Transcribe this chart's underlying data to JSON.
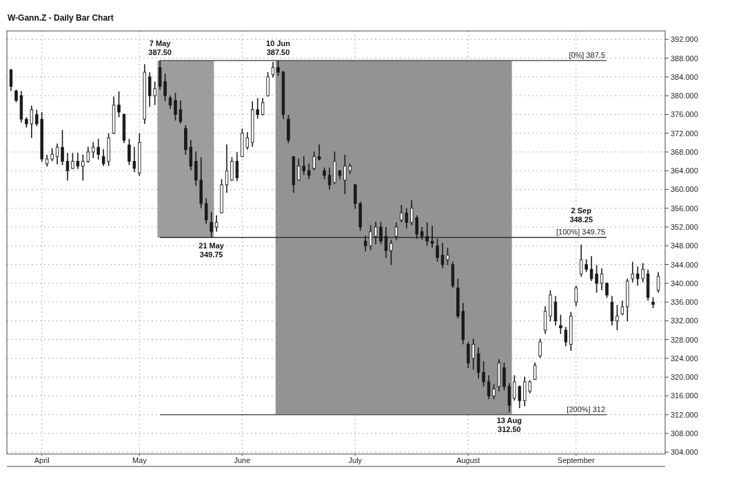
{
  "chart_data": {
    "type": "candlestick",
    "title": "W-Gann.Z - Daily Bar Chart",
    "color": "#1a1a1a",
    "categories": [
      null,
      null,
      null,
      null,
      null,
      null,
      "April",
      null,
      null,
      null,
      null,
      null,
      null,
      null,
      null,
      null,
      null,
      null,
      null,
      null,
      null,
      null,
      null,
      null,
      null,
      "May",
      null,
      null,
      null,
      null,
      null,
      null,
      null,
      null,
      null,
      null,
      null,
      null,
      null,
      null,
      null,
      null,
      null,
      null,
      null,
      "June",
      null,
      null,
      null,
      null,
      null,
      null,
      null,
      null,
      null,
      null,
      null,
      null,
      null,
      null,
      null,
      null,
      null,
      null,
      null,
      null,
      null,
      "July",
      null,
      null,
      null,
      null,
      null,
      null,
      null,
      null,
      null,
      null,
      null,
      null,
      null,
      null,
      null,
      null,
      null,
      null,
      null,
      null,
      null,
      "August",
      null,
      null,
      null,
      null,
      null,
      null,
      null,
      null,
      null,
      null,
      null,
      null,
      null,
      null,
      null,
      null,
      null,
      null,
      null,
      null,
      "September",
      null,
      null,
      null,
      null,
      null,
      null,
      null,
      null,
      null,
      null,
      null,
      null,
      null,
      null,
      null,
      null
    ],
    "ohlc": [
      [
        385.5,
        385.7,
        381,
        382
      ],
      [
        381,
        381.3,
        378.6,
        379
      ],
      [
        380,
        381,
        374.3,
        375
      ],
      [
        375,
        375.4,
        373.2,
        374
      ],
      [
        374,
        377.9,
        371,
        377
      ],
      [
        376,
        377,
        373.5,
        374
      ],
      [
        375,
        376.5,
        365.9,
        366.5
      ],
      [
        365.5,
        367.4,
        364.9,
        366.5
      ],
      [
        366.5,
        368.8,
        366,
        367.5
      ],
      [
        367,
        369.8,
        365.4,
        369
      ],
      [
        369,
        372.7,
        365.2,
        366
      ],
      [
        366,
        367.8,
        361.9,
        364
      ],
      [
        364.5,
        367.8,
        364.4,
        366
      ],
      [
        366,
        367.8,
        364.4,
        365
      ],
      [
        365,
        367.4,
        361.9,
        366
      ],
      [
        366,
        369.1,
        365.7,
        368
      ],
      [
        368,
        370.1,
        366.7,
        369
      ],
      [
        369,
        370.8,
        366.4,
        367.5
      ],
      [
        367,
        368.6,
        365,
        365.5
      ],
      [
        366,
        372,
        365,
        371
      ],
      [
        372,
        379.8,
        371.8,
        378
      ],
      [
        378,
        380.9,
        375.4,
        376.5
      ],
      [
        376,
        376.2,
        369.9,
        370.5
      ],
      [
        369.5,
        370.8,
        365.2,
        366
      ],
      [
        366,
        369.1,
        363.7,
        364.5
      ],
      [
        363.5,
        372,
        362.9,
        370
      ],
      [
        375,
        386.7,
        374,
        385
      ],
      [
        384,
        385,
        377.6,
        380
      ],
      [
        380,
        383,
        378,
        381.5
      ],
      [
        386,
        387.5,
        381.3,
        382
      ],
      [
        383,
        384.7,
        378.8,
        380
      ],
      [
        379.5,
        380.1,
        377.2,
        378
      ],
      [
        379,
        380.6,
        374.7,
        376
      ],
      [
        377,
        379,
        374,
        374.5
      ],
      [
        373,
        373.7,
        367.4,
        368.5
      ],
      [
        369,
        370.6,
        364.1,
        365
      ],
      [
        366,
        368.1,
        360.8,
        362
      ],
      [
        362,
        366.9,
        356,
        357
      ],
      [
        357,
        358.1,
        352.7,
        353.5
      ],
      [
        353,
        355.2,
        349.75,
        351
      ],
      [
        352,
        354.5,
        351,
        353
      ],
      [
        355,
        362.2,
        354.9,
        361
      ],
      [
        361,
        369.6,
        359.3,
        364
      ],
      [
        362,
        366.9,
        361.8,
        366
      ],
      [
        366,
        368,
        361.8,
        362.5
      ],
      [
        367,
        373,
        366.9,
        372
      ],
      [
        369,
        372.2,
        368.5,
        371
      ],
      [
        370,
        378.8,
        369.1,
        377
      ],
      [
        377,
        379.5,
        375.1,
        376
      ],
      [
        376,
        379.5,
        375.8,
        378.5
      ],
      [
        380,
        385,
        379.8,
        384
      ],
      [
        384.5,
        387.2,
        383.9,
        386
      ],
      [
        386,
        387.5,
        384.2,
        385
      ],
      [
        385,
        385.3,
        375,
        376
      ],
      [
        375,
        375.9,
        369.9,
        370.5
      ],
      [
        367,
        367.1,
        359.3,
        361
      ],
      [
        362,
        366.6,
        361.9,
        365
      ],
      [
        365,
        367.1,
        363.1,
        364
      ],
      [
        364,
        365.5,
        362.2,
        363
      ],
      [
        364.5,
        368.1,
        364.1,
        367
      ],
      [
        367,
        369.6,
        366.2,
        366.5
      ],
      [
        364,
        364.7,
        362.2,
        363
      ],
      [
        363,
        364.7,
        360,
        361
      ],
      [
        361.5,
        368.1,
        361.2,
        366
      ],
      [
        364,
        364.1,
        362.2,
        363
      ],
      [
        362,
        367.4,
        359,
        365
      ],
      [
        364,
        365.5,
        363.3,
        365
      ],
      [
        361,
        361.2,
        355.9,
        357
      ],
      [
        357,
        357.4,
        351.2,
        352
      ],
      [
        349,
        350.2,
        346.8,
        348
      ],
      [
        348,
        352.4,
        347.1,
        351
      ],
      [
        350,
        353.1,
        348.3,
        352
      ],
      [
        352,
        353.1,
        348.3,
        349
      ],
      [
        350,
        352,
        345.4,
        347
      ],
      [
        347,
        349.3,
        343.9,
        348.5
      ],
      [
        350,
        353,
        349.3,
        352
      ],
      [
        353.5,
        356.7,
        353,
        355
      ],
      [
        355,
        356,
        351.7,
        353
      ],
      [
        353,
        357.8,
        352.4,
        356
      ],
      [
        354,
        354.5,
        349.5,
        350.5
      ],
      [
        351,
        352,
        349.3,
        350
      ],
      [
        350,
        353,
        348,
        349
      ],
      [
        349,
        352.3,
        347.6,
        348.5
      ],
      [
        348,
        349.5,
        344.6,
        345.5
      ],
      [
        346,
        348.6,
        343.2,
        344
      ],
      [
        345,
        347.6,
        343.9,
        346
      ],
      [
        344,
        344.6,
        339,
        339.5
      ],
      [
        339,
        341,
        332.5,
        333
      ],
      [
        334,
        335.8,
        327,
        328
      ],
      [
        327,
        327.5,
        321.9,
        323
      ],
      [
        324,
        328.2,
        321.6,
        327
      ],
      [
        325,
        326.3,
        319.7,
        321
      ],
      [
        321,
        323.4,
        318,
        319
      ],
      [
        319,
        320.4,
        315.3,
        316
      ],
      [
        316,
        318.5,
        315.3,
        317.5
      ],
      [
        318,
        323.8,
        317,
        323
      ],
      [
        322,
        323.1,
        317.2,
        318
      ],
      [
        318,
        318.7,
        312.5,
        314
      ],
      [
        315.5,
        320.4,
        315,
        319
      ],
      [
        318,
        318.2,
        313.4,
        315
      ],
      [
        315,
        320.1,
        313.8,
        319
      ],
      [
        317,
        319.3,
        316.5,
        319
      ],
      [
        319.5,
        323.1,
        319.4,
        322.5
      ],
      [
        324.5,
        328.2,
        324.1,
        327.5
      ],
      [
        330,
        335.1,
        329.2,
        334
      ],
      [
        333,
        338.5,
        331.9,
        337.5
      ],
      [
        336,
        337.3,
        331,
        332
      ],
      [
        331,
        333.3,
        329.2,
        330.5
      ],
      [
        330,
        330.7,
        326.6,
        327.5
      ],
      [
        327,
        333.9,
        325.6,
        333
      ],
      [
        336,
        339.5,
        335.1,
        339
      ],
      [
        342,
        348.25,
        341.4,
        345
      ],
      [
        344,
        345.1,
        342.4,
        343
      ],
      [
        343,
        345.8,
        340.5,
        341
      ],
      [
        342,
        343.9,
        338,
        340
      ],
      [
        340,
        343.2,
        338.5,
        342
      ],
      [
        340,
        340.2,
        336.9,
        337.5
      ],
      [
        336,
        337.3,
        331,
        332
      ],
      [
        332,
        335.4,
        330,
        333
      ],
      [
        333.5,
        336.3,
        333.2,
        335
      ],
      [
        335,
        341,
        331.9,
        340.5
      ],
      [
        341,
        344.6,
        340.2,
        342
      ],
      [
        342,
        343.6,
        339.5,
        341
      ],
      [
        341,
        344.3,
        340.2,
        343
      ],
      [
        342,
        342.9,
        336.3,
        337
      ],
      [
        336,
        337,
        334.7,
        335.5
      ],
      [
        338.5,
        342.4,
        338,
        341.5
      ]
    ],
    "ylim": [
      303.6,
      393.8
    ],
    "yticks": [
      {
        "value": 304,
        "label": "304.000"
      },
      {
        "value": 308,
        "label": "308.000"
      },
      {
        "value": 312,
        "label": "312.000"
      },
      {
        "value": 316,
        "label": "316.000"
      },
      {
        "value": 320,
        "label": "320.000"
      },
      {
        "value": 324,
        "label": "324.000"
      },
      {
        "value": 328,
        "label": "328.000"
      },
      {
        "value": 332,
        "label": "332.000"
      },
      {
        "value": 336,
        "label": "336.000"
      },
      {
        "value": 340,
        "label": "340.000"
      },
      {
        "value": 344,
        "label": "344.000"
      },
      {
        "value": 348,
        "label": "348.000"
      },
      {
        "value": 352,
        "label": "352.000"
      },
      {
        "value": 356,
        "label": "356.000"
      },
      {
        "value": 360,
        "label": "360.000"
      },
      {
        "value": 364,
        "label": "364.000"
      },
      {
        "value": 368,
        "label": "368.000"
      },
      {
        "value": 372,
        "label": "372.000"
      },
      {
        "value": 376,
        "label": "376.000"
      },
      {
        "value": 380,
        "label": "380.000"
      },
      {
        "value": 384,
        "label": "384.000"
      },
      {
        "value": 388,
        "label": "388.000"
      },
      {
        "value": 392,
        "label": "392.000"
      }
    ],
    "grid": true,
    "ref_lines": [
      {
        "axis": "y",
        "value": 387.5,
        "label": "[0%] 387.5",
        "color": "#555555"
      },
      {
        "axis": "y",
        "value": 349.75,
        "label": "[100%] 349.75",
        "color": "#333333"
      },
      {
        "axis": "y",
        "value": 312,
        "label": "[200%] 312",
        "color": "#555555"
      }
    ],
    "bands": [
      {
        "axis": "y",
        "from": 349.75,
        "to": 387.5,
        "color": "#8c8c8c"
      },
      {
        "axis": "y",
        "from": 312,
        "to": 387.5,
        "color": "#808080"
      }
    ],
    "annotations": [
      {
        "text": "7 May\n387.50",
        "y": 387.5
      },
      {
        "text": "10 Jun\n387.50",
        "y": 387.5
      },
      {
        "text": "21 May\n349.75",
        "y": 349.75
      },
      {
        "text": "13 Aug\n312.50",
        "y": 312.5
      },
      {
        "text": "2 Sep\n348.25",
        "y": 348.25
      }
    ]
  }
}
